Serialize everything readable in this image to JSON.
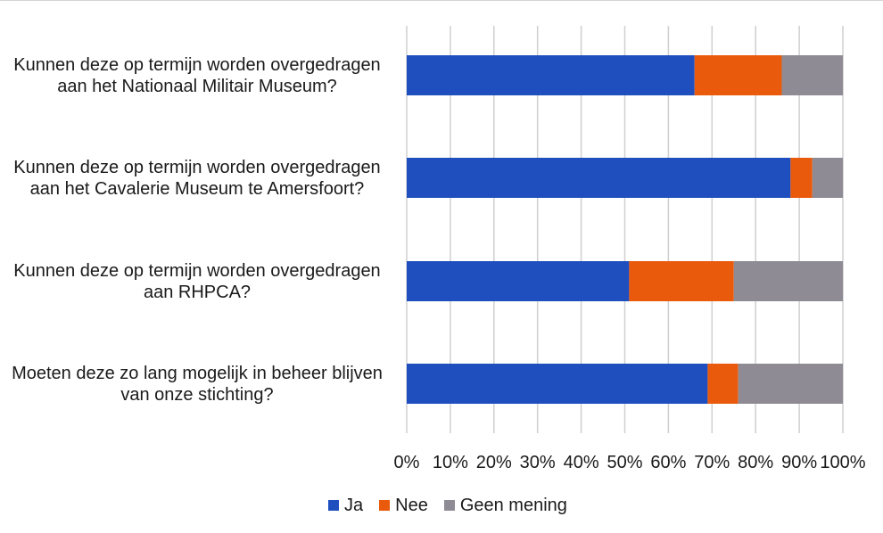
{
  "chart_data": {
    "type": "bar",
    "orientation": "horizontal",
    "stacked": "percent",
    "categories": [
      [
        "Kunnen deze op termijn worden overgedragen",
        "aan het Nationaal Militair Museum?"
      ],
      [
        "Kunnen deze op termijn worden overgedragen",
        "aan het Cavalerie Museum te Amersfoort?"
      ],
      [
        "Kunnen deze op termijn worden overgedragen",
        "aan RHPCA?"
      ],
      [
        "Moeten deze zo lang mogelijk in beheer blijven",
        "van onze stichting?"
      ]
    ],
    "series": [
      {
        "name": "Ja",
        "color": "#1f4fbf",
        "values": [
          66,
          88,
          51,
          69
        ]
      },
      {
        "name": "Nee",
        "color": "#ea5a0c",
        "values": [
          20,
          5,
          24,
          7
        ]
      },
      {
        "name": "Geen mening",
        "color": "#8e8b94",
        "values": [
          14,
          7,
          25,
          24
        ]
      }
    ],
    "xlim": [
      0,
      100
    ],
    "x_ticks": [
      "0%",
      "10%",
      "20%",
      "30%",
      "40%",
      "50%",
      "60%",
      "70%",
      "80%",
      "90%",
      "100%"
    ],
    "grid": true,
    "legend": "bottom",
    "title": "",
    "xlabel": "",
    "ylabel": ""
  }
}
